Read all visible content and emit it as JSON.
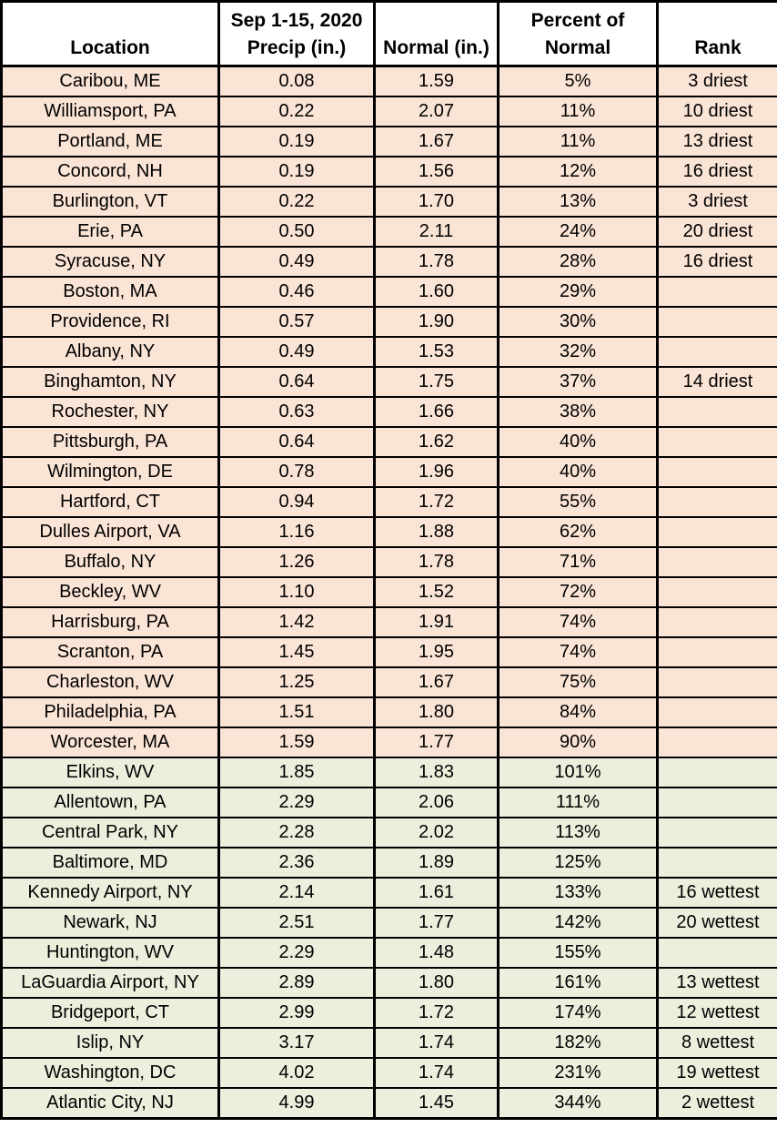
{
  "colors": {
    "below_normal_row": "#fae4d5",
    "above_normal_row": "#ebf0dd",
    "border": "#000000",
    "header_bg": "#ffffff",
    "text": "#000000"
  },
  "chart_data": {
    "type": "table",
    "headers": [
      {
        "line1": "",
        "line2": "Location"
      },
      {
        "line1": "Sep 1-15, 2020",
        "line2": "Precip (in.)"
      },
      {
        "line1": "",
        "line2": "Normal (in.)"
      },
      {
        "line1": "Percent of",
        "line2": "Normal"
      },
      {
        "line1": "",
        "line2": "Rank"
      }
    ],
    "columns": [
      "Location",
      "Sep 1-15, 2020 Precip (in.)",
      "Normal (in.)",
      "Percent of Normal",
      "Rank"
    ],
    "rows": [
      {
        "location": "Caribou, ME",
        "precip": "0.08",
        "normal": "1.59",
        "percent": "5%",
        "rank": "3 driest",
        "status": "dry"
      },
      {
        "location": "Williamsport, PA",
        "precip": "0.22",
        "normal": "2.07",
        "percent": "11%",
        "rank": "10 driest",
        "status": "dry"
      },
      {
        "location": "Portland, ME",
        "precip": "0.19",
        "normal": "1.67",
        "percent": "11%",
        "rank": "13 driest",
        "status": "dry"
      },
      {
        "location": "Concord, NH",
        "precip": "0.19",
        "normal": "1.56",
        "percent": "12%",
        "rank": "16 driest",
        "status": "dry"
      },
      {
        "location": "Burlington, VT",
        "precip": "0.22",
        "normal": "1.70",
        "percent": "13%",
        "rank": "3 driest",
        "status": "dry"
      },
      {
        "location": "Erie, PA",
        "precip": "0.50",
        "normal": "2.11",
        "percent": "24%",
        "rank": "20 driest",
        "status": "dry"
      },
      {
        "location": "Syracuse, NY",
        "precip": "0.49",
        "normal": "1.78",
        "percent": "28%",
        "rank": "16 driest",
        "status": "dry"
      },
      {
        "location": "Boston, MA",
        "precip": "0.46",
        "normal": "1.60",
        "percent": "29%",
        "rank": "",
        "status": "dry"
      },
      {
        "location": "Providence, RI",
        "precip": "0.57",
        "normal": "1.90",
        "percent": "30%",
        "rank": "",
        "status": "dry"
      },
      {
        "location": "Albany, NY",
        "precip": "0.49",
        "normal": "1.53",
        "percent": "32%",
        "rank": "",
        "status": "dry"
      },
      {
        "location": "Binghamton, NY",
        "precip": "0.64",
        "normal": "1.75",
        "percent": "37%",
        "rank": "14 driest",
        "status": "dry"
      },
      {
        "location": "Rochester, NY",
        "precip": "0.63",
        "normal": "1.66",
        "percent": "38%",
        "rank": "",
        "status": "dry"
      },
      {
        "location": "Pittsburgh, PA",
        "precip": "0.64",
        "normal": "1.62",
        "percent": "40%",
        "rank": "",
        "status": "dry"
      },
      {
        "location": "Wilmington, DE",
        "precip": "0.78",
        "normal": "1.96",
        "percent": "40%",
        "rank": "",
        "status": "dry"
      },
      {
        "location": "Hartford, CT",
        "precip": "0.94",
        "normal": "1.72",
        "percent": "55%",
        "rank": "",
        "status": "dry"
      },
      {
        "location": "Dulles Airport, VA",
        "precip": "1.16",
        "normal": "1.88",
        "percent": "62%",
        "rank": "",
        "status": "dry"
      },
      {
        "location": "Buffalo, NY",
        "precip": "1.26",
        "normal": "1.78",
        "percent": "71%",
        "rank": "",
        "status": "dry"
      },
      {
        "location": "Beckley, WV",
        "precip": "1.10",
        "normal": "1.52",
        "percent": "72%",
        "rank": "",
        "status": "dry"
      },
      {
        "location": "Harrisburg, PA",
        "precip": "1.42",
        "normal": "1.91",
        "percent": "74%",
        "rank": "",
        "status": "dry"
      },
      {
        "location": "Scranton, PA",
        "precip": "1.45",
        "normal": "1.95",
        "percent": "74%",
        "rank": "",
        "status": "dry"
      },
      {
        "location": "Charleston, WV",
        "precip": "1.25",
        "normal": "1.67",
        "percent": "75%",
        "rank": "",
        "status": "dry"
      },
      {
        "location": "Philadelphia, PA",
        "precip": "1.51",
        "normal": "1.80",
        "percent": "84%",
        "rank": "",
        "status": "dry"
      },
      {
        "location": "Worcester, MA",
        "precip": "1.59",
        "normal": "1.77",
        "percent": "90%",
        "rank": "",
        "status": "dry"
      },
      {
        "location": "Elkins, WV",
        "precip": "1.85",
        "normal": "1.83",
        "percent": "101%",
        "rank": "",
        "status": "wet"
      },
      {
        "location": "Allentown, PA",
        "precip": "2.29",
        "normal": "2.06",
        "percent": "111%",
        "rank": "",
        "status": "wet"
      },
      {
        "location": "Central Park, NY",
        "precip": "2.28",
        "normal": "2.02",
        "percent": "113%",
        "rank": "",
        "status": "wet"
      },
      {
        "location": "Baltimore, MD",
        "precip": "2.36",
        "normal": "1.89",
        "percent": "125%",
        "rank": "",
        "status": "wet"
      },
      {
        "location": "Kennedy Airport, NY",
        "precip": "2.14",
        "normal": "1.61",
        "percent": "133%",
        "rank": "16 wettest",
        "status": "wet"
      },
      {
        "location": "Newark, NJ",
        "precip": "2.51",
        "normal": "1.77",
        "percent": "142%",
        "rank": "20 wettest",
        "status": "wet"
      },
      {
        "location": "Huntington, WV",
        "precip": "2.29",
        "normal": "1.48",
        "percent": "155%",
        "rank": "",
        "status": "wet"
      },
      {
        "location": "LaGuardia Airport, NY",
        "precip": "2.89",
        "normal": "1.80",
        "percent": "161%",
        "rank": "13 wettest",
        "status": "wet"
      },
      {
        "location": "Bridgeport, CT",
        "precip": "2.99",
        "normal": "1.72",
        "percent": "174%",
        "rank": "12 wettest",
        "status": "wet"
      },
      {
        "location": "Islip, NY",
        "precip": "3.17",
        "normal": "1.74",
        "percent": "182%",
        "rank": "8 wettest",
        "status": "wet"
      },
      {
        "location": "Washington, DC",
        "precip": "4.02",
        "normal": "1.74",
        "percent": "231%",
        "rank": "19 wettest",
        "status": "wet"
      },
      {
        "location": "Atlantic City, NJ",
        "precip": "4.99",
        "normal": "1.45",
        "percent": "344%",
        "rank": "2 wettest",
        "status": "wet"
      }
    ]
  }
}
